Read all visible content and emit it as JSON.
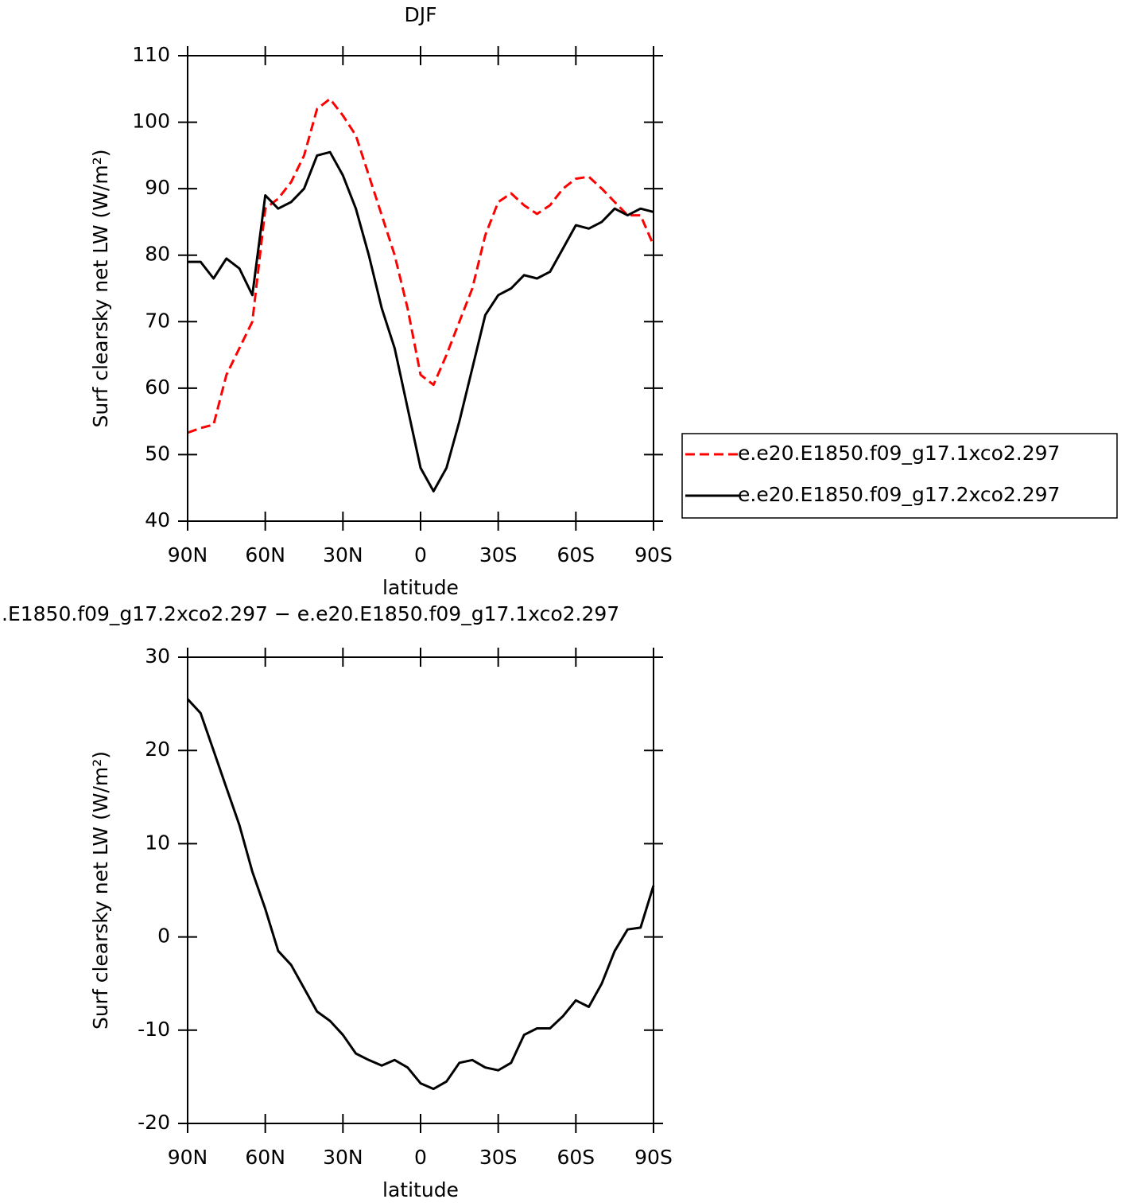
{
  "chart_data": [
    {
      "type": "line",
      "title": "DJF",
      "xlabel": "latitude",
      "ylabel": "Surf clearsky net LW (W/m²)",
      "x": [
        90,
        85,
        80,
        75,
        70,
        65,
        60,
        55,
        50,
        45,
        40,
        35,
        30,
        25,
        20,
        15,
        10,
        5,
        0,
        -5,
        -10,
        -15,
        -20,
        -25,
        -30,
        -35,
        -40,
        -45,
        -50,
        -55,
        -60,
        -65,
        -70,
        -75,
        -80,
        -85,
        -90
      ],
      "series": [
        {
          "name": "e.e20.E1850.f09_g17.1xco2.297",
          "color": "#ff0000",
          "linestyle": "dashed",
          "values": [
            53.3,
            54,
            54.5,
            62,
            66,
            70,
            87,
            88.5,
            91,
            95,
            102,
            103.5,
            101,
            98,
            92,
            86,
            80,
            72,
            62,
            60.5,
            65,
            70,
            75,
            83,
            88,
            89.3,
            87.5,
            86.2,
            87.5,
            90,
            91.5,
            91.8,
            90,
            88,
            86,
            86,
            81.5
          ]
        },
        {
          "name": "e.e20.E1850.f09_g17.2xco2.297",
          "color": "#000000",
          "linestyle": "solid",
          "values": [
            79,
            79,
            76.5,
            79.5,
            78,
            74,
            89,
            87,
            88,
            90,
            95,
            95.5,
            92,
            87,
            80,
            72,
            66,
            57,
            48,
            44.5,
            48,
            55,
            63,
            71,
            74,
            75,
            77,
            76.5,
            77.5,
            81,
            84.5,
            84,
            85,
            87,
            86,
            87,
            86.5
          ]
        }
      ],
      "xlim": [
        90,
        -90
      ],
      "xticks": [
        {
          "value": 90,
          "label": "90N"
        },
        {
          "value": 60,
          "label": "60N"
        },
        {
          "value": 30,
          "label": "30N"
        },
        0,
        {
          "value": -30,
          "label": "30S"
        },
        {
          "value": -60,
          "label": "60S"
        },
        {
          "value": -90,
          "label": "90S"
        }
      ],
      "ylim": [
        40,
        110
      ],
      "yticks": [
        40,
        50,
        60,
        70,
        80,
        90,
        100,
        110
      ],
      "legend": "right"
    },
    {
      "type": "line",
      "title": ".E1850.f09_g17.2xco2.297 − e.e20.E1850.f09_g17.1xco2.297",
      "xlabel": "latitude",
      "ylabel": "Surf clearsky net LW (W/m²)",
      "x": [
        90,
        85,
        80,
        75,
        70,
        65,
        60,
        55,
        50,
        45,
        40,
        35,
        30,
        25,
        20,
        15,
        10,
        5,
        0,
        -5,
        -10,
        -15,
        -20,
        -25,
        -30,
        -35,
        -40,
        -45,
        -50,
        -55,
        -60,
        -65,
        -70,
        -75,
        -80,
        -85,
        -90
      ],
      "series": [
        {
          "color": "#000000",
          "linestyle": "solid",
          "values": [
            25.5,
            24,
            20,
            16,
            12,
            7,
            3,
            -1.5,
            -3,
            -5.5,
            -8,
            -9,
            -10.5,
            -12.5,
            -13.2,
            -13.8,
            -13.2,
            -14,
            -15.7,
            -16.3,
            -15.5,
            -13.5,
            -13.2,
            -14,
            -14.3,
            -13.5,
            -10.5,
            -9.8,
            -9.8,
            -8.5,
            -6.8,
            -7.5,
            -5,
            -1.5,
            0.8,
            1,
            5.5
          ]
        }
      ],
      "xlim": [
        90,
        -90
      ],
      "xticks": [
        {
          "value": 90,
          "label": "90N"
        },
        {
          "value": 60,
          "label": "60N"
        },
        {
          "value": 30,
          "label": "30N"
        },
        0,
        {
          "value": -30,
          "label": "30S"
        },
        {
          "value": -60,
          "label": "60S"
        },
        {
          "value": -90,
          "label": "90S"
        }
      ],
      "ylim": [
        -20,
        30
      ],
      "yticks": [
        -20,
        -10,
        0,
        10,
        20,
        30
      ]
    }
  ]
}
